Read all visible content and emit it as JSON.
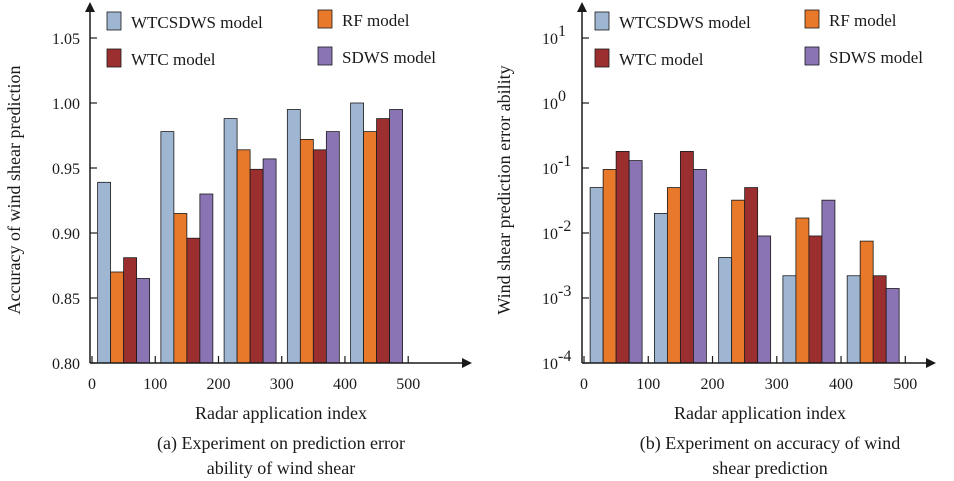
{
  "chart_data": [
    {
      "type": "bar",
      "categories": [
        50,
        150,
        250,
        350,
        450
      ],
      "series": [
        {
          "name": "WTCSDWS model",
          "color": "#9fb6d3",
          "values": [
            0.939,
            0.978,
            0.988,
            0.995,
            1.0
          ]
        },
        {
          "name": "RF model",
          "color": "#e8782a",
          "values": [
            0.87,
            0.915,
            0.964,
            0.972,
            0.978
          ]
        },
        {
          "name": "WTC model",
          "color": "#9b2f2f",
          "values": [
            0.881,
            0.896,
            0.949,
            0.964,
            0.988
          ]
        },
        {
          "name": "SDWS model",
          "color": "#8b74b3",
          "values": [
            0.865,
            0.93,
            0.957,
            0.978,
            0.995
          ]
        }
      ],
      "xticks": [
        "0",
        "100",
        "200",
        "300",
        "400",
        "500"
      ],
      "yticks": [
        "0.80",
        "0.85",
        "0.90",
        "0.95",
        "1.00",
        "1.05"
      ],
      "xlim": [
        0,
        550
      ],
      "ylim": [
        0.8,
        1.05
      ],
      "xlabel": "Radar application index",
      "ylabel": "Accuracy of wind shear prediction",
      "caption_line1": "(a) Experiment on prediction error",
      "caption_line2": "ability of wind shear",
      "legend_position": "top"
    },
    {
      "type": "bar",
      "log_scale_y": true,
      "categories": [
        50,
        150,
        250,
        350,
        450
      ],
      "series": [
        {
          "name": "WTCSDWS model",
          "color": "#9fb6d3",
          "values": [
            0.05,
            0.02,
            0.0042,
            0.0022,
            0.0022
          ]
        },
        {
          "name": "RF model",
          "color": "#e8782a",
          "values": [
            0.095,
            0.05,
            0.032,
            0.017,
            0.0075
          ]
        },
        {
          "name": "WTC model",
          "color": "#9b2f2f",
          "values": [
            0.18,
            0.18,
            0.05,
            0.009,
            0.0022
          ]
        },
        {
          "name": "SDWS model",
          "color": "#8b74b3",
          "values": [
            0.13,
            0.095,
            0.009,
            0.032,
            0.0014
          ]
        }
      ],
      "xticks": [
        "0",
        "100",
        "200",
        "300",
        "400",
        "500"
      ],
      "yticks": [
        {
          "base": "10",
          "exp": "-4"
        },
        {
          "base": "10",
          "exp": "-3"
        },
        {
          "base": "10",
          "exp": "-2"
        },
        {
          "base": "10",
          "exp": "-1"
        },
        {
          "base": "10",
          "exp": "0"
        },
        {
          "base": "10",
          "exp": "1"
        }
      ],
      "xlim": [
        0,
        550
      ],
      "ylim": [
        0.0001,
        50
      ],
      "xlabel": "Radar application index",
      "ylabel": "Wind shear prediction error ability",
      "caption_line1": "(b) Experiment on accuracy of wind",
      "caption_line2": "shear prediction",
      "legend_position": "top"
    }
  ]
}
